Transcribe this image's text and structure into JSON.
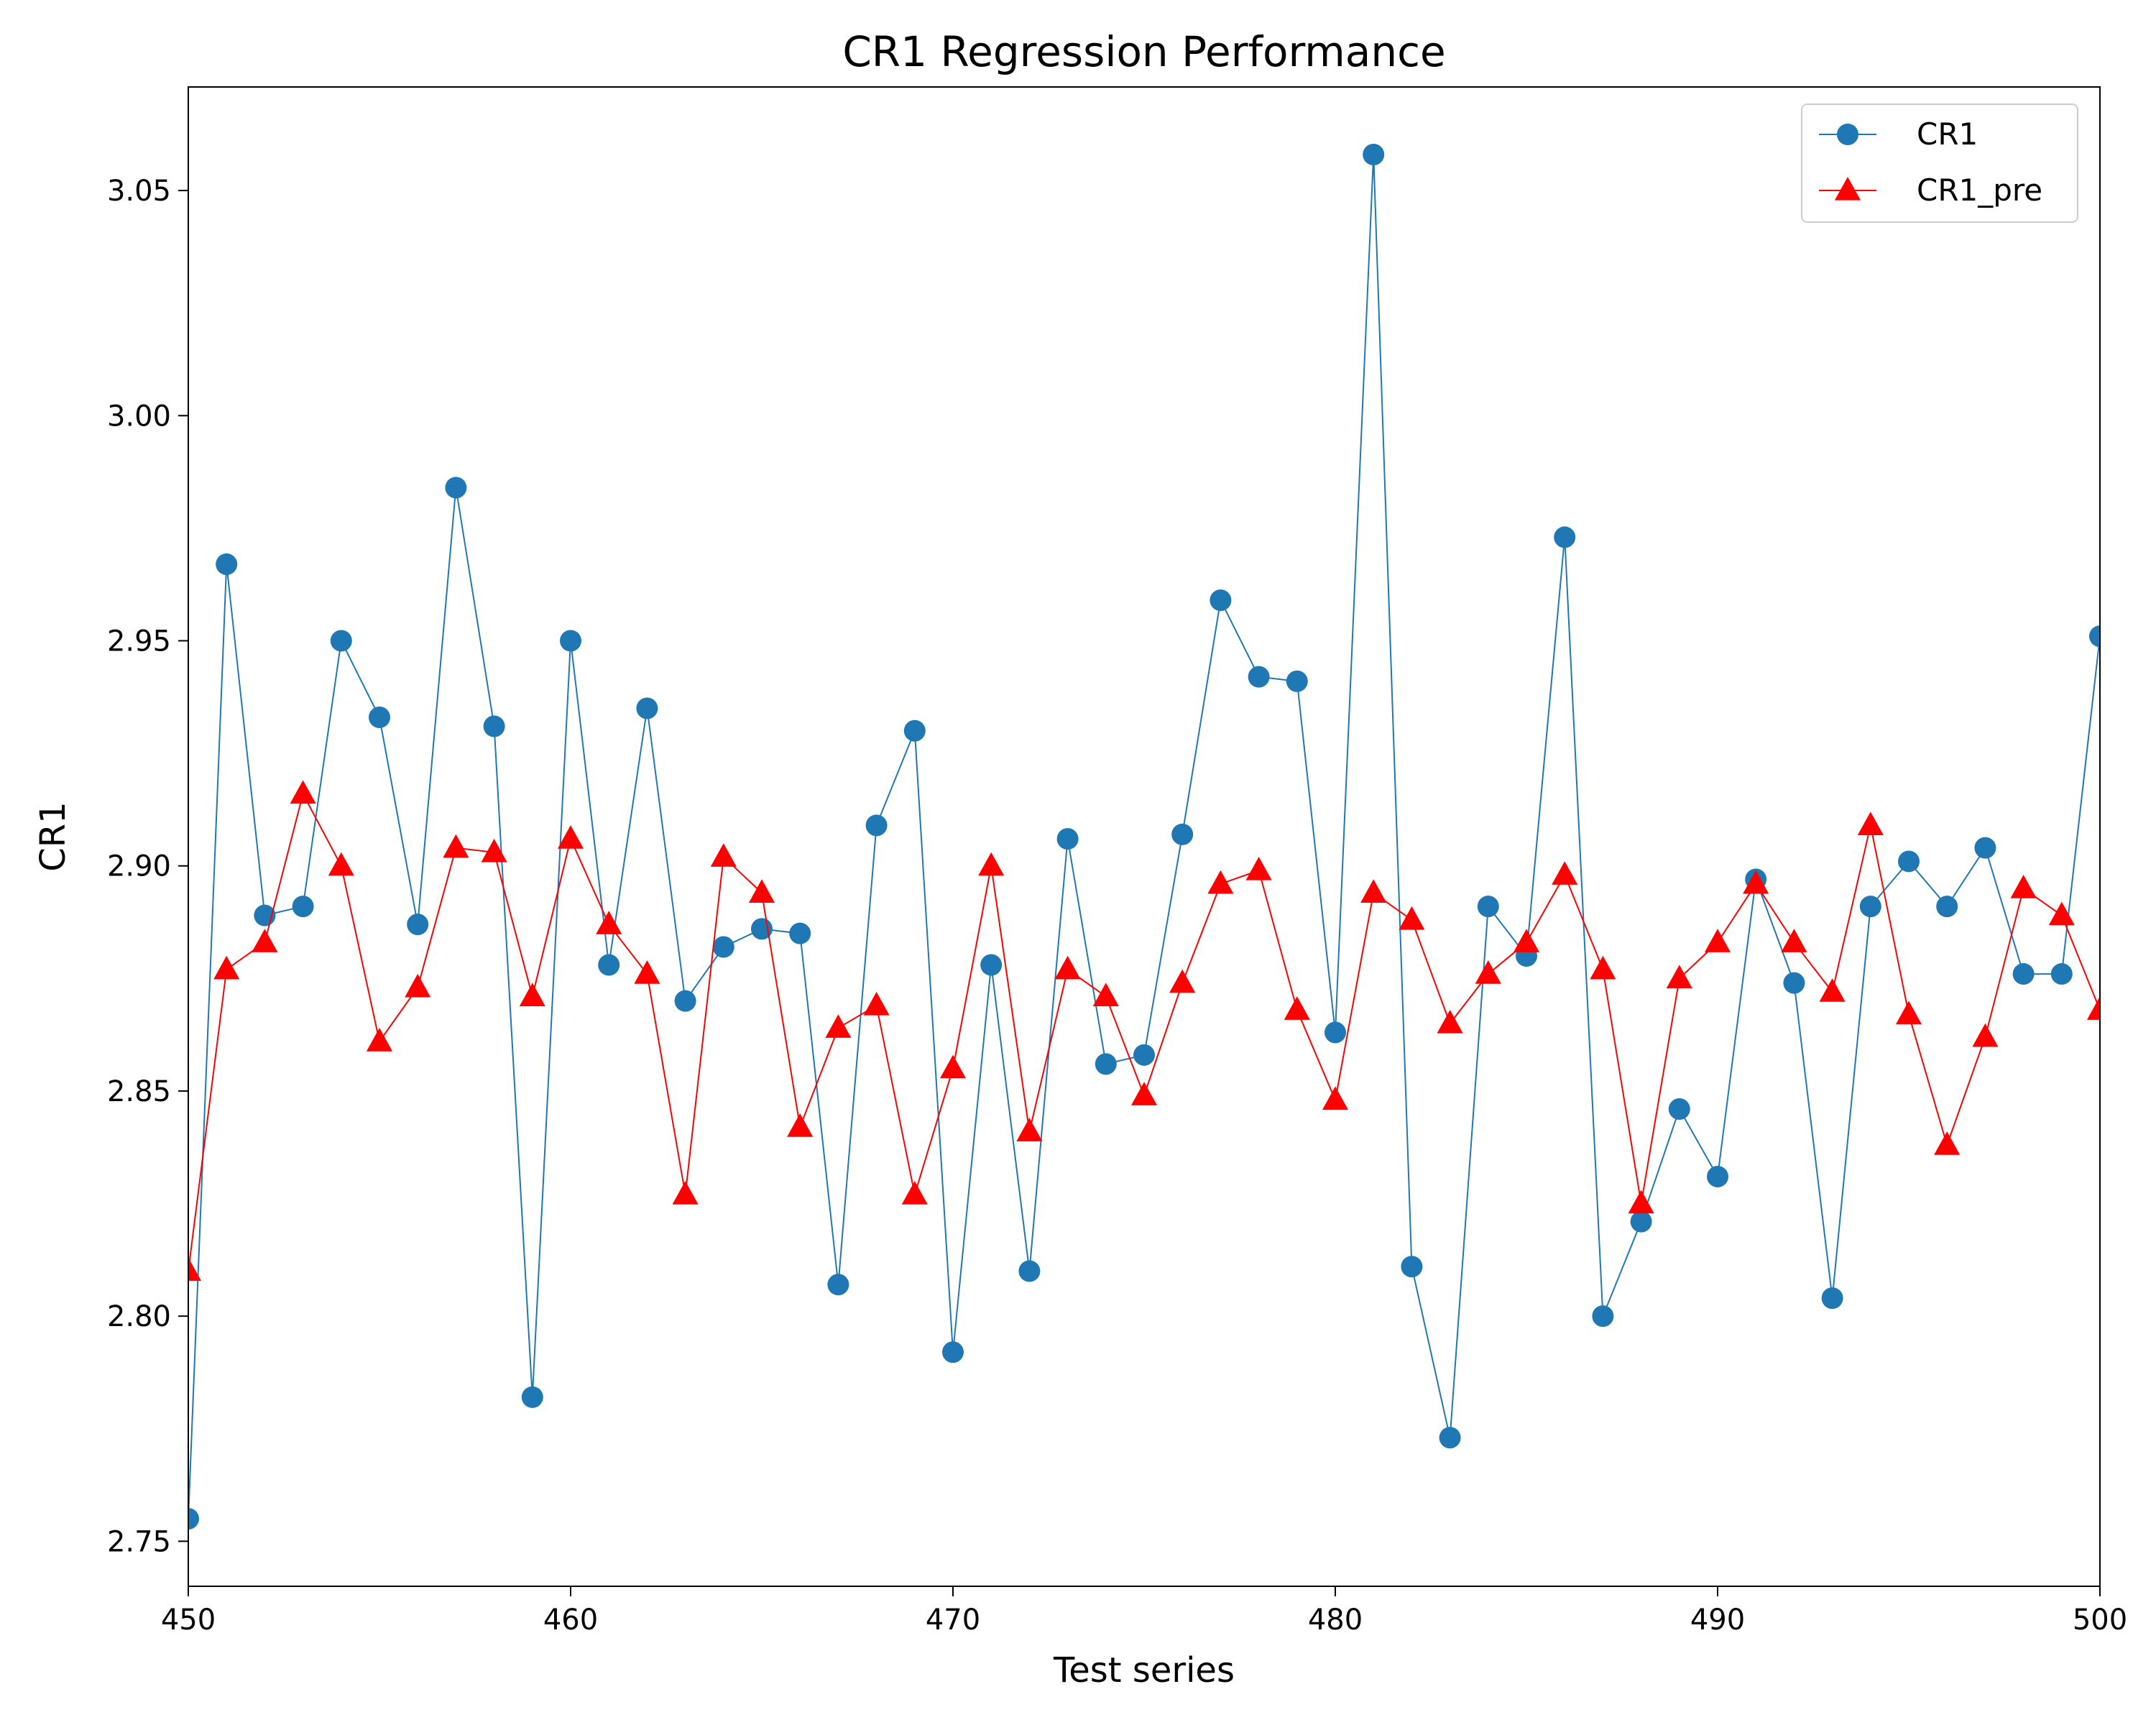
{
  "chart_data": {
    "type": "line",
    "title": "CR1 Regression Performance",
    "xlabel": "Test series",
    "ylabel": "CR1",
    "xlim": [
      450,
      500
    ],
    "ylim": [
      2.74,
      3.073
    ],
    "x_ticks": [
      450,
      460,
      470,
      480,
      490,
      500
    ],
    "x_tick_labels": [
      "450",
      "460",
      "470",
      "480",
      "490",
      "500"
    ],
    "y_ticks": [
      2.75,
      2.8,
      2.85,
      2.9,
      2.95,
      3.0,
      3.05
    ],
    "y_tick_labels": [
      "2.75",
      "2.80",
      "2.85",
      "2.90",
      "2.95",
      "3.00",
      "3.05"
    ],
    "grid": false,
    "legend": {
      "placement": "top-right"
    },
    "x": [
      450,
      451,
      452,
      453,
      454,
      455,
      456,
      457,
      458,
      459,
      460,
      461,
      462,
      463,
      464,
      465,
      466,
      467,
      468,
      469,
      470,
      471,
      472,
      473,
      474,
      475,
      476,
      477,
      478,
      479,
      480,
      481,
      482,
      483,
      484,
      485,
      486,
      487,
      488,
      489,
      490,
      491,
      492,
      493,
      494,
      495,
      496,
      497,
      498,
      499,
      500
    ],
    "series": [
      {
        "name": "CR1",
        "color": "#1f77b4",
        "marker": "circle",
        "values": [
          2.755,
          2.967,
          2.889,
          2.891,
          2.95,
          2.933,
          2.887,
          2.984,
          2.931,
          2.782,
          2.95,
          2.878,
          2.935,
          2.87,
          2.882,
          2.886,
          2.885,
          2.807,
          2.909,
          2.93,
          2.792,
          2.878,
          2.81,
          2.906,
          2.856,
          2.858,
          2.907,
          2.959,
          2.942,
          2.941,
          2.863,
          3.058,
          2.811,
          2.773,
          2.891,
          2.88,
          2.973,
          2.8,
          2.821,
          2.846,
          2.831,
          2.897,
          2.874,
          2.804,
          2.891,
          2.901,
          2.891,
          2.904,
          2.876,
          2.876,
          2.951
        ]
      },
      {
        "name": "CR1_pre",
        "color": "#ff0000",
        "marker": "triangle",
        "values": [
          2.81,
          2.877,
          2.883,
          2.916,
          2.9,
          2.861,
          2.873,
          2.904,
          2.903,
          2.871,
          2.906,
          2.887,
          2.876,
          2.827,
          2.902,
          2.894,
          2.842,
          2.864,
          2.869,
          2.827,
          2.855,
          2.9,
          2.841,
          2.877,
          2.871,
          2.849,
          2.874,
          2.896,
          2.899,
          2.868,
          2.848,
          2.894,
          2.888,
          2.865,
          2.876,
          2.883,
          2.898,
          2.877,
          2.825,
          2.875,
          2.883,
          2.896,
          2.883,
          2.872,
          2.909,
          2.867,
          2.838,
          2.862,
          2.895,
          2.889,
          2.868
        ]
      }
    ]
  }
}
